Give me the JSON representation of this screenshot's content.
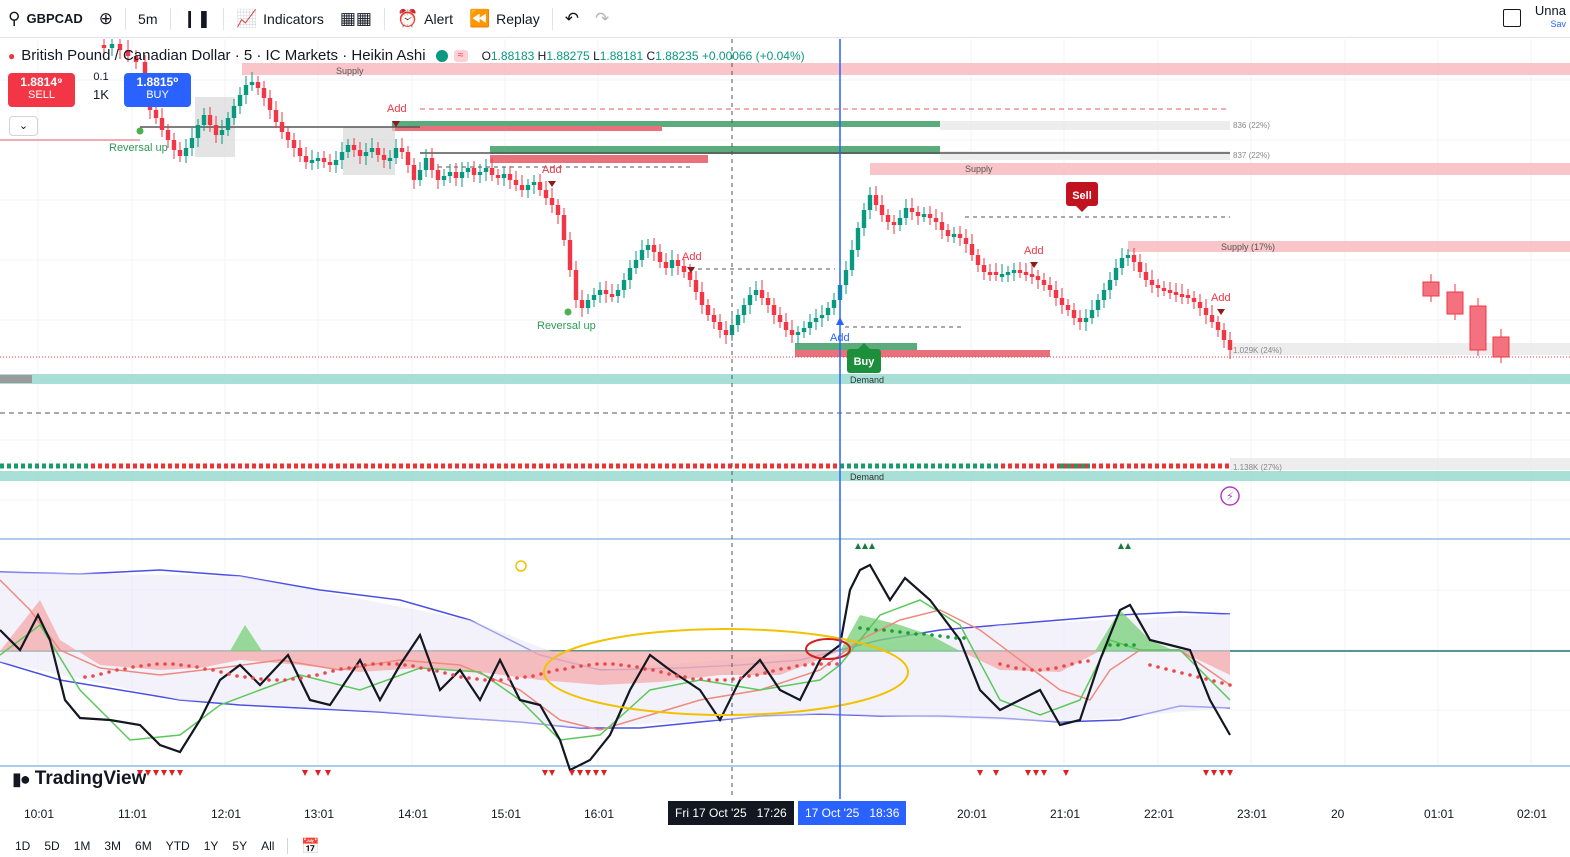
{
  "toolbar": {
    "symbol": "GBPCAD",
    "interval": "5m",
    "indicators": "Indicators",
    "alert": "Alert",
    "replay": "Replay",
    "layout_name": "Unna",
    "layout_sub": "Sav"
  },
  "legend": {
    "title": "British Pound / Canadian Dollar · 5 · IC Markets · Heikin Ashi",
    "open_label": "O",
    "open": "1.88183",
    "high_label": "H",
    "high": "1.88275",
    "low_label": "L",
    "low": "1.88181",
    "close_label": "C",
    "close": "1.88235",
    "change": "+0.00066 (+0.04%)"
  },
  "trade": {
    "sell_price": "1.8814⁹",
    "sell_label": "SELL",
    "buy_price": "1.8815⁰",
    "buy_label": "BUY",
    "qty_top": "0.1",
    "qty_main": "1K"
  },
  "annotations": {
    "supply": "Supply",
    "demand": "Demand",
    "add": "Add",
    "reversal_up": "Reversal up",
    "sell_signal": "Sell",
    "buy_signal": "Buy",
    "level_836": "836 (22%)",
    "level_837": "837 (22%)",
    "level_supply_pct": "Supply (17%)",
    "level_1029": "1.029K (24%)",
    "level_1138": "1.138K (27%)"
  },
  "time_axis": {
    "labels": [
      "10:01",
      "11:01",
      "12:01",
      "13:01",
      "14:01",
      "15:01",
      "16:01",
      "20:01",
      "21:01",
      "22:01",
      "23:01",
      "20",
      "01:01",
      "02:01"
    ],
    "crosshair_date": "Fri 17 Oct '25",
    "crosshair_time": "17:26",
    "cursor_date": "17 Oct '25",
    "cursor_time": "18:36"
  },
  "ranges": [
    "1D",
    "5D",
    "1M",
    "3M",
    "6M",
    "YTD",
    "1Y",
    "5Y",
    "All"
  ],
  "brand": "TradingView",
  "colors": {
    "bull": "#089981",
    "bear": "#f23645",
    "accent": "#2962ff",
    "supply_zone": "#f7b6bc",
    "demand_zone": "#7fd3c7"
  }
}
